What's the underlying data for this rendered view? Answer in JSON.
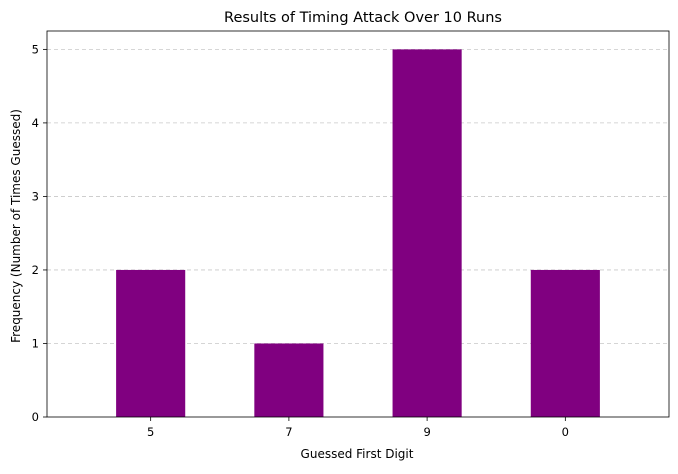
{
  "chart_data": {
    "type": "bar",
    "title": "Results of Timing Attack Over 10 Runs",
    "xlabel": "Guessed First Digit",
    "ylabel": "Frequency (Number of Times Guessed)",
    "categories": [
      "5",
      "7",
      "9",
      "0"
    ],
    "values": [
      2,
      1,
      5,
      2
    ],
    "ylim": [
      0,
      5.25
    ],
    "yticks": [
      "0",
      "1",
      "2",
      "3",
      "4",
      "5"
    ],
    "grid": "y-dashed",
    "legend": "none",
    "bar_color": "#800080",
    "grid_color": "#c8c8c8"
  }
}
